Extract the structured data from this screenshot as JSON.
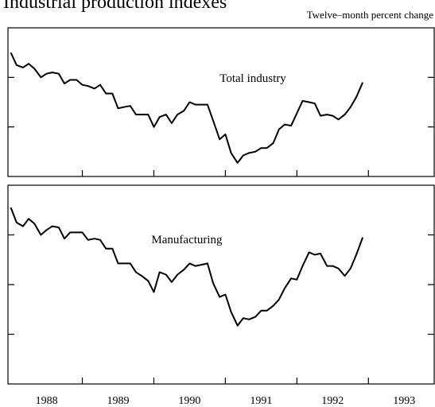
{
  "chart_data": [
    {
      "type": "line",
      "title": "Industrial production indexes",
      "subtitle": "Twelve–month percent change",
      "annotation": "Total industry",
      "x": [
        1988,
        1988.08,
        1988.17,
        1988.25,
        1988.33,
        1988.42,
        1988.5,
        1988.58,
        1988.67,
        1988.75,
        1988.83,
        1988.92,
        1989,
        1989.08,
        1989.17,
        1989.25,
        1989.33,
        1989.42,
        1989.5,
        1989.58,
        1989.67,
        1989.75,
        1989.83,
        1989.92,
        1990,
        1990.08,
        1990.17,
        1990.25,
        1990.33,
        1990.42,
        1990.5,
        1990.58,
        1990.67,
        1990.75,
        1990.83,
        1990.92,
        1991,
        1991.08,
        1991.17,
        1991.25,
        1991.33,
        1991.42,
        1991.5,
        1991.58,
        1991.67,
        1991.75,
        1991.83,
        1991.92,
        1992,
        1992.08,
        1992.17,
        1992.25,
        1992.33,
        1992.42,
        1992.5,
        1992.58,
        1992.67,
        1992.75,
        1992.83,
        1992.92
      ],
      "series": [
        {
          "name": "Total industry",
          "color": "#000000",
          "values": [
            6.0,
            5.0,
            4.8,
            5.1,
            4.7,
            4.0,
            4.3,
            4.4,
            4.3,
            3.5,
            3.8,
            3.8,
            3.4,
            3.3,
            3.1,
            3.4,
            2.7,
            2.7,
            1.5,
            1.6,
            1.7,
            1.0,
            1.0,
            1.0,
            0.0,
            0.8,
            1.0,
            0.3,
            1.0,
            1.3,
            2.0,
            1.8,
            1.8,
            1.8,
            0.5,
            -1.0,
            -0.6,
            -2.1,
            -2.9,
            -2.3,
            -2.1,
            -2.0,
            -1.7,
            -1.7,
            -1.3,
            -0.2,
            0.2,
            0.1,
            1.1,
            2.1,
            2.0,
            1.9,
            0.9,
            1.0,
            0.9,
            0.6,
            1.0,
            1.6,
            2.4,
            3.6
          ]
        }
      ],
      "xlim": [
        1987.96,
        1993.92
      ],
      "xticks": [
        1989,
        1990,
        1991,
        1992,
        1993
      ],
      "ylim": [
        -4,
        8
      ],
      "yticks": [
        0,
        4
      ]
    },
    {
      "type": "line",
      "annotation": "Manufacturing",
      "x": [
        1988,
        1988.08,
        1988.17,
        1988.25,
        1988.33,
        1988.42,
        1988.5,
        1988.58,
        1988.67,
        1988.75,
        1988.83,
        1988.92,
        1989,
        1989.08,
        1989.17,
        1989.25,
        1989.33,
        1989.42,
        1989.5,
        1989.58,
        1989.67,
        1989.75,
        1989.83,
        1989.92,
        1990,
        1990.08,
        1990.17,
        1990.25,
        1990.33,
        1990.42,
        1990.5,
        1990.58,
        1990.67,
        1990.75,
        1990.83,
        1990.92,
        1991,
        1991.08,
        1991.17,
        1991.25,
        1991.33,
        1991.42,
        1991.5,
        1991.58,
        1991.67,
        1991.75,
        1991.83,
        1991.92,
        1992,
        1992.08,
        1992.17,
        1992.25,
        1992.33,
        1992.42,
        1992.5,
        1992.58,
        1992.67,
        1992.75,
        1992.83,
        1992.92
      ],
      "series": [
        {
          "name": "Manufacturing",
          "color": "#000000",
          "values": [
            6.2,
            5.0,
            4.7,
            5.3,
            4.9,
            4.0,
            4.4,
            4.7,
            4.6,
            3.7,
            4.2,
            4.2,
            4.2,
            3.6,
            3.7,
            3.6,
            2.9,
            2.9,
            1.7,
            1.7,
            1.7,
            1.0,
            0.7,
            0.3,
            -0.6,
            1.0,
            0.8,
            0.2,
            0.8,
            1.2,
            1.7,
            1.5,
            1.6,
            1.7,
            0.1,
            -1.0,
            -0.8,
            -2.2,
            -3.3,
            -2.7,
            -2.8,
            -2.6,
            -2.1,
            -2.1,
            -1.7,
            -1.2,
            -0.3,
            0.5,
            0.4,
            1.5,
            2.6,
            2.4,
            2.5,
            1.5,
            1.5,
            1.3,
            0.7,
            1.3,
            2.4,
            3.8
          ]
        }
      ],
      "xlim": [
        1987.96,
        1993.92
      ],
      "xticks": [
        1989,
        1990,
        1991,
        1992,
        1993
      ],
      "xlabels": [
        {
          "value": 1988.5,
          "label": "1988"
        },
        {
          "value": 1989.5,
          "label": "1989"
        },
        {
          "value": 1990.5,
          "label": "1990"
        },
        {
          "value": 1991.5,
          "label": "1991"
        },
        {
          "value": 1992.5,
          "label": "1992"
        },
        {
          "value": 1993.5,
          "label": "1993"
        }
      ],
      "ylim": [
        -8,
        8
      ],
      "yticks": [
        -4,
        0,
        4
      ]
    }
  ]
}
